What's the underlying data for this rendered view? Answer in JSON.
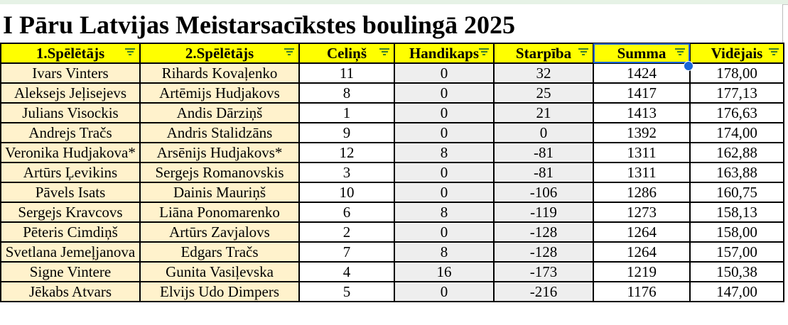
{
  "title": "I Pāru Latvijas Meistarsacīkstes boulingā 2025",
  "columns": [
    "1.Spēlētājs",
    "2.Spēlētājs",
    "Celiņš",
    "Handikaps",
    "Starpība",
    "Summa",
    "Vidējais"
  ],
  "rows": [
    [
      "Ivars Vinters",
      "Rihards Kovaļenko",
      "11",
      "0",
      "32",
      "1424",
      "178,00"
    ],
    [
      "Aleksejs Jeļisejevs",
      "Artēmijs Hudjakovs",
      "8",
      "0",
      "25",
      "1417",
      "177,13"
    ],
    [
      "Julians Visockis",
      "Andis Dārziņš",
      "1",
      "0",
      "21",
      "1413",
      "176,63"
    ],
    [
      "Andrejs Tračs",
      "Andris Stalidzāns",
      "9",
      "0",
      "0",
      "1392",
      "174,00"
    ],
    [
      "Veronika Hudjakova*",
      "Arsēnijs Hudjakovs*",
      "12",
      "8",
      "-81",
      "1311",
      "162,88"
    ],
    [
      "Artūrs Ļevikins",
      "Sergejs Romanovskis",
      "3",
      "0",
      "-81",
      "1311",
      "163,88"
    ],
    [
      "Pāvels Isats",
      "Dainis Mauriņš",
      "10",
      "0",
      "-106",
      "1286",
      "160,75"
    ],
    [
      "Sergejs Kravcovs",
      "Liāna Ponomarenko",
      "6",
      "8",
      "-119",
      "1273",
      "158,13"
    ],
    [
      "Pēteris Cimdiņš",
      "Artūrs Zavjalovs",
      "2",
      "0",
      "-128",
      "1264",
      "158,00"
    ],
    [
      "Svetlana Jemeļjanova",
      "Edgars Tračs",
      "7",
      "8",
      "-128",
      "1264",
      "157,00"
    ],
    [
      "Signe Vintere",
      "Gunita Vasiļevska",
      "4",
      "16",
      "-173",
      "1219",
      "150,38"
    ],
    [
      "Jēkabs Atvars",
      "Elvijs Udo Dimpers",
      "5",
      "0",
      "-216",
      "1176",
      "147,00"
    ]
  ],
  "colors": {
    "header_bg": "#ffff00",
    "name_bg": "#fff2cc",
    "grey_bg": "#eeeeee",
    "selection": "#1a66d9",
    "filter_icon": "#3c7d2c"
  },
  "icons": [
    "filter-icon",
    "fill-handle-icon"
  ]
}
